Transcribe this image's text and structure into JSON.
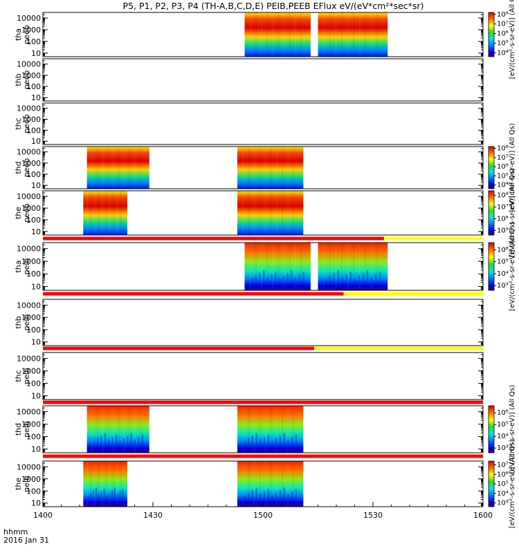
{
  "chart_data": {
    "type": "heatmap",
    "title": "P5, P1, P2, P3, P4 (TH-A,B,C,D,E) PEIB,PEEB EFlux eV/(eV*cm²*sec*sr)",
    "x_axis": {
      "ticks": [
        "1400",
        "1430",
        "1500",
        "1530",
        "1600"
      ],
      "tick_minutes": [
        0,
        30,
        60,
        90,
        120
      ],
      "range_minutes": [
        0,
        120
      ],
      "label_unit": "hhmm",
      "label_date": "2016 Jan 31"
    },
    "y_ticks": [
      "10000",
      "1000",
      "100",
      "10"
    ],
    "y_range_eV": [
      5,
      30000
    ],
    "colorbar_label": "[eV/(cm²-s-sr-eV)] (All Qs)",
    "panels": [
      {
        "label1": "tha",
        "label2": "peeb",
        "species": "electron",
        "intervals": [
          [
            55,
            73
          ],
          [
            75,
            94
          ]
        ],
        "colorbar": [
          "10⁸",
          "10⁷",
          "10⁶",
          "10⁵",
          "10⁴"
        ],
        "cbar_log_range": [
          3.6,
          8.2
        ]
      },
      {
        "label1": "thb",
        "label2": "peeb",
        "species": "electron",
        "intervals": [],
        "colorbar": []
      },
      {
        "label1": "thc",
        "label2": "peeb",
        "species": "electron",
        "intervals": [],
        "colorbar": []
      },
      {
        "label1": "thd",
        "label2": "peeb",
        "species": "electron",
        "intervals": [
          [
            12,
            29
          ],
          [
            53,
            71
          ]
        ],
        "colorbar": [
          "10⁸",
          "10⁷",
          "10⁶",
          "10⁵",
          "10⁴"
        ],
        "cbar_log_range": [
          3.6,
          8.2
        ]
      },
      {
        "label1": "the",
        "label2": "peeb",
        "species": "electron",
        "intervals": [
          [
            11,
            23
          ],
          [
            53,
            71
          ]
        ],
        "colorbar": [
          "10⁸",
          "10⁷",
          "10⁶",
          "10⁵"
        ],
        "cbar_log_range": [
          4.6,
          8.4
        ]
      },
      {
        "label1": "tha",
        "label2": "peib",
        "species": "ion",
        "intervals": [
          [
            55,
            73
          ],
          [
            75,
            94
          ]
        ],
        "colorbar": [
          "10⁶",
          "10⁵",
          "10⁴",
          "10³"
        ],
        "cbar_log_range": [
          2.6,
          6.6
        ],
        "status_bar": {
          "red_until_minute": 93
        }
      },
      {
        "label1": "thb",
        "label2": "peib",
        "species": "ion",
        "intervals": [],
        "colorbar": [],
        "status_bar": {
          "red_until_minute": 82
        }
      },
      {
        "label1": "thc",
        "label2": "peib",
        "species": "ion",
        "intervals": [],
        "colorbar": [],
        "status_bar": {
          "red_until_minute": 74
        }
      },
      {
        "label1": "thd",
        "label2": "peib",
        "species": "ion",
        "intervals": [
          [
            12,
            29
          ],
          [
            53,
            71
          ]
        ],
        "colorbar": [
          "10⁶",
          "10⁵",
          "10⁴",
          "10³"
        ],
        "cbar_log_range": [
          2.6,
          6.6
        ],
        "status_bar": {
          "red_until_minute": 120
        }
      },
      {
        "label1": "the",
        "label2": "peib",
        "species": "ion",
        "intervals": [
          [
            11,
            23
          ],
          [
            53,
            71
          ]
        ],
        "colorbar": [
          "10⁷",
          "10⁶",
          "10⁵",
          "10⁴",
          "10³"
        ],
        "cbar_log_range": [
          2.6,
          7.4
        ],
        "status_bar": {
          "red_until_minute": 120
        }
      }
    ],
    "status_colors": {
      "bad": "#ff0000",
      "good": "#ffff00"
    }
  }
}
